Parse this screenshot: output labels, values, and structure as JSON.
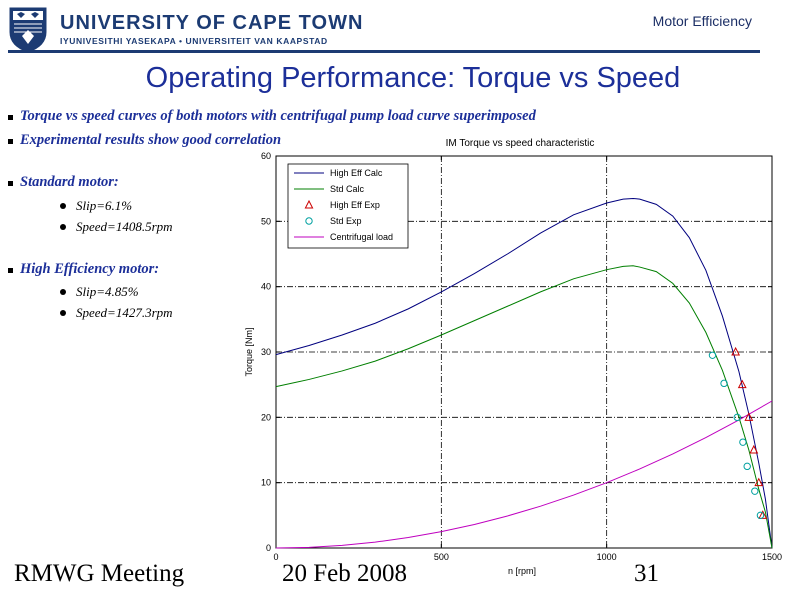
{
  "header": {
    "university_name": "UNIVERSITY OF CAPE TOWN",
    "university_subtitle": "IYUNIVESITHI YASEKAPA • UNIVERSITEIT VAN KAAPSTAD",
    "topic": "Motor Efficiency"
  },
  "slide": {
    "title": "Operating Performance: Torque vs Speed",
    "bullets": [
      "Torque vs speed curves of both motors with centrifugal pump load curve superimposed",
      "Experimental results show good correlation",
      "Standard motor:",
      "High Efficiency motor:"
    ],
    "standard_sub": [
      "Slip=6.1%",
      "Speed=1408.5rpm"
    ],
    "higheff_sub": [
      "Slip=4.85%",
      "Speed=1427.3rpm"
    ]
  },
  "footer": {
    "left": "RMWG Meeting",
    "date": "20 Feb 2008",
    "page": "31"
  },
  "colors": {
    "brand": "#1c3b73",
    "title": "#1c2f99",
    "high_eff": "#00007f",
    "std": "#007f00",
    "load": "#bf00bf",
    "high_eff_exp": "#cc0000",
    "std_exp": "#00a0a0"
  },
  "chart_data": {
    "type": "line",
    "title": "IM Torque vs speed characteristic",
    "xlabel": "n [rpm]",
    "ylabel": "Torque [Nm]",
    "xlim": [
      0,
      1500
    ],
    "ylim": [
      0,
      60
    ],
    "xticks": [
      0,
      500,
      1000,
      1500
    ],
    "yticks": [
      0,
      10,
      20,
      30,
      40,
      50,
      60
    ],
    "grid": true,
    "legend_position": "top-left",
    "series": [
      {
        "name": "High Eff Calc",
        "kind": "line",
        "color": "#00007f",
        "x": [
          0,
          100,
          200,
          300,
          400,
          500,
          600,
          700,
          800,
          900,
          1000,
          1050,
          1080,
          1100,
          1150,
          1200,
          1250,
          1300,
          1350,
          1400,
          1430,
          1460,
          1480,
          1500
        ],
        "y": [
          29.6,
          31.0,
          32.6,
          34.4,
          36.6,
          39.2,
          42.0,
          45.0,
          48.2,
          51.0,
          52.8,
          53.4,
          53.5,
          53.4,
          52.6,
          50.8,
          47.5,
          42.5,
          35.5,
          27.0,
          20.5,
          13.0,
          7.5,
          0
        ]
      },
      {
        "name": "Std Calc",
        "kind": "line",
        "color": "#007f00",
        "x": [
          0,
          100,
          200,
          300,
          400,
          500,
          600,
          700,
          800,
          900,
          1000,
          1050,
          1080,
          1100,
          1150,
          1200,
          1250,
          1300,
          1350,
          1400,
          1430,
          1460,
          1480,
          1500
        ],
        "y": [
          24.7,
          25.8,
          27.1,
          28.6,
          30.5,
          32.6,
          34.8,
          37.0,
          39.2,
          41.2,
          42.6,
          43.1,
          43.2,
          43.0,
          42.3,
          40.5,
          37.5,
          33.0,
          27.2,
          20.0,
          15.0,
          9.0,
          5.5,
          0
        ]
      },
      {
        "name": "High Eff Exp",
        "kind": "marker",
        "marker": "triangle",
        "color": "#cc0000",
        "x": [
          1390,
          1410,
          1430,
          1445,
          1460,
          1472
        ],
        "y": [
          30,
          25,
          20,
          15,
          10,
          5
        ]
      },
      {
        "name": "Std Exp",
        "kind": "marker",
        "marker": "circle",
        "color": "#00a0a0",
        "x": [
          1320,
          1355,
          1395,
          1412,
          1425,
          1448,
          1465
        ],
        "y": [
          29.5,
          25.2,
          20,
          16.2,
          12.5,
          8.7,
          5
        ]
      },
      {
        "name": "Centrifugal load",
        "kind": "line",
        "color": "#bf00bf",
        "x": [
          0,
          100,
          200,
          300,
          400,
          500,
          600,
          700,
          800,
          900,
          1000,
          1100,
          1200,
          1300,
          1400,
          1500
        ],
        "y": [
          0,
          0.1,
          0.4,
          0.9,
          1.6,
          2.5,
          3.6,
          4.9,
          6.4,
          8.1,
          10.0,
          12.1,
          14.4,
          16.9,
          19.6,
          22.5
        ]
      }
    ]
  }
}
